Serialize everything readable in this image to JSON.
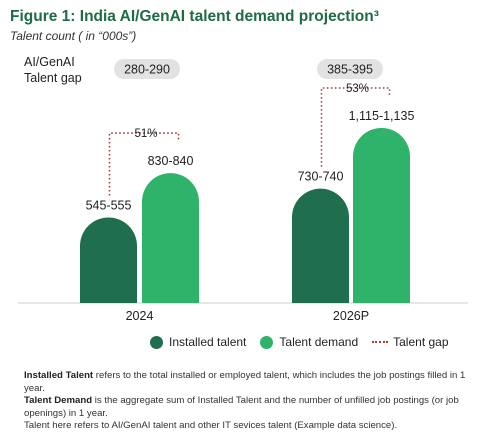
{
  "figure_title": "Figure 1: India AI/GenAI talent demand projection³",
  "figure_subtitle": "Talent count ( in “000s”)",
  "gap_row_label": "AI/GenAI Talent gap",
  "colors": {
    "installed": "#1f6e4e",
    "demand": "#2fb36a",
    "gap_line": "#b23a3a",
    "title": "#1e6b45",
    "pill": "#e2e2e2"
  },
  "chart_data": {
    "type": "bar",
    "categories": [
      "2024",
      "2026P"
    ],
    "series": [
      {
        "name": "Installed talent",
        "values": [
          550,
          735
        ],
        "labels": [
          "545-555",
          "730-740"
        ]
      },
      {
        "name": "Talent demand",
        "values": [
          835,
          1125
        ],
        "labels": [
          "830-840",
          "1,115-1,135"
        ]
      }
    ],
    "talent_gap": {
      "labels": [
        "280-290",
        "385-395"
      ],
      "percent_labels": [
        "51%",
        "53%"
      ]
    },
    "legend": [
      "Installed talent",
      "Talent demand",
      "Talent gap"
    ],
    "grid": false
  },
  "notes": {
    "installed_term": "Installed Talent",
    "installed_text": " refers to the total installed or employed talent, which includes the job postings filled in 1 year.",
    "demand_term": "Talent Demand",
    "demand_text": " is the aggregate sum of Installed Talent and the number of unfilled job postings (or job openings) in 1 year.",
    "scope_text": "Talent here refers to AI/GenAI talent and other IT sevices talent (Example data science)."
  }
}
